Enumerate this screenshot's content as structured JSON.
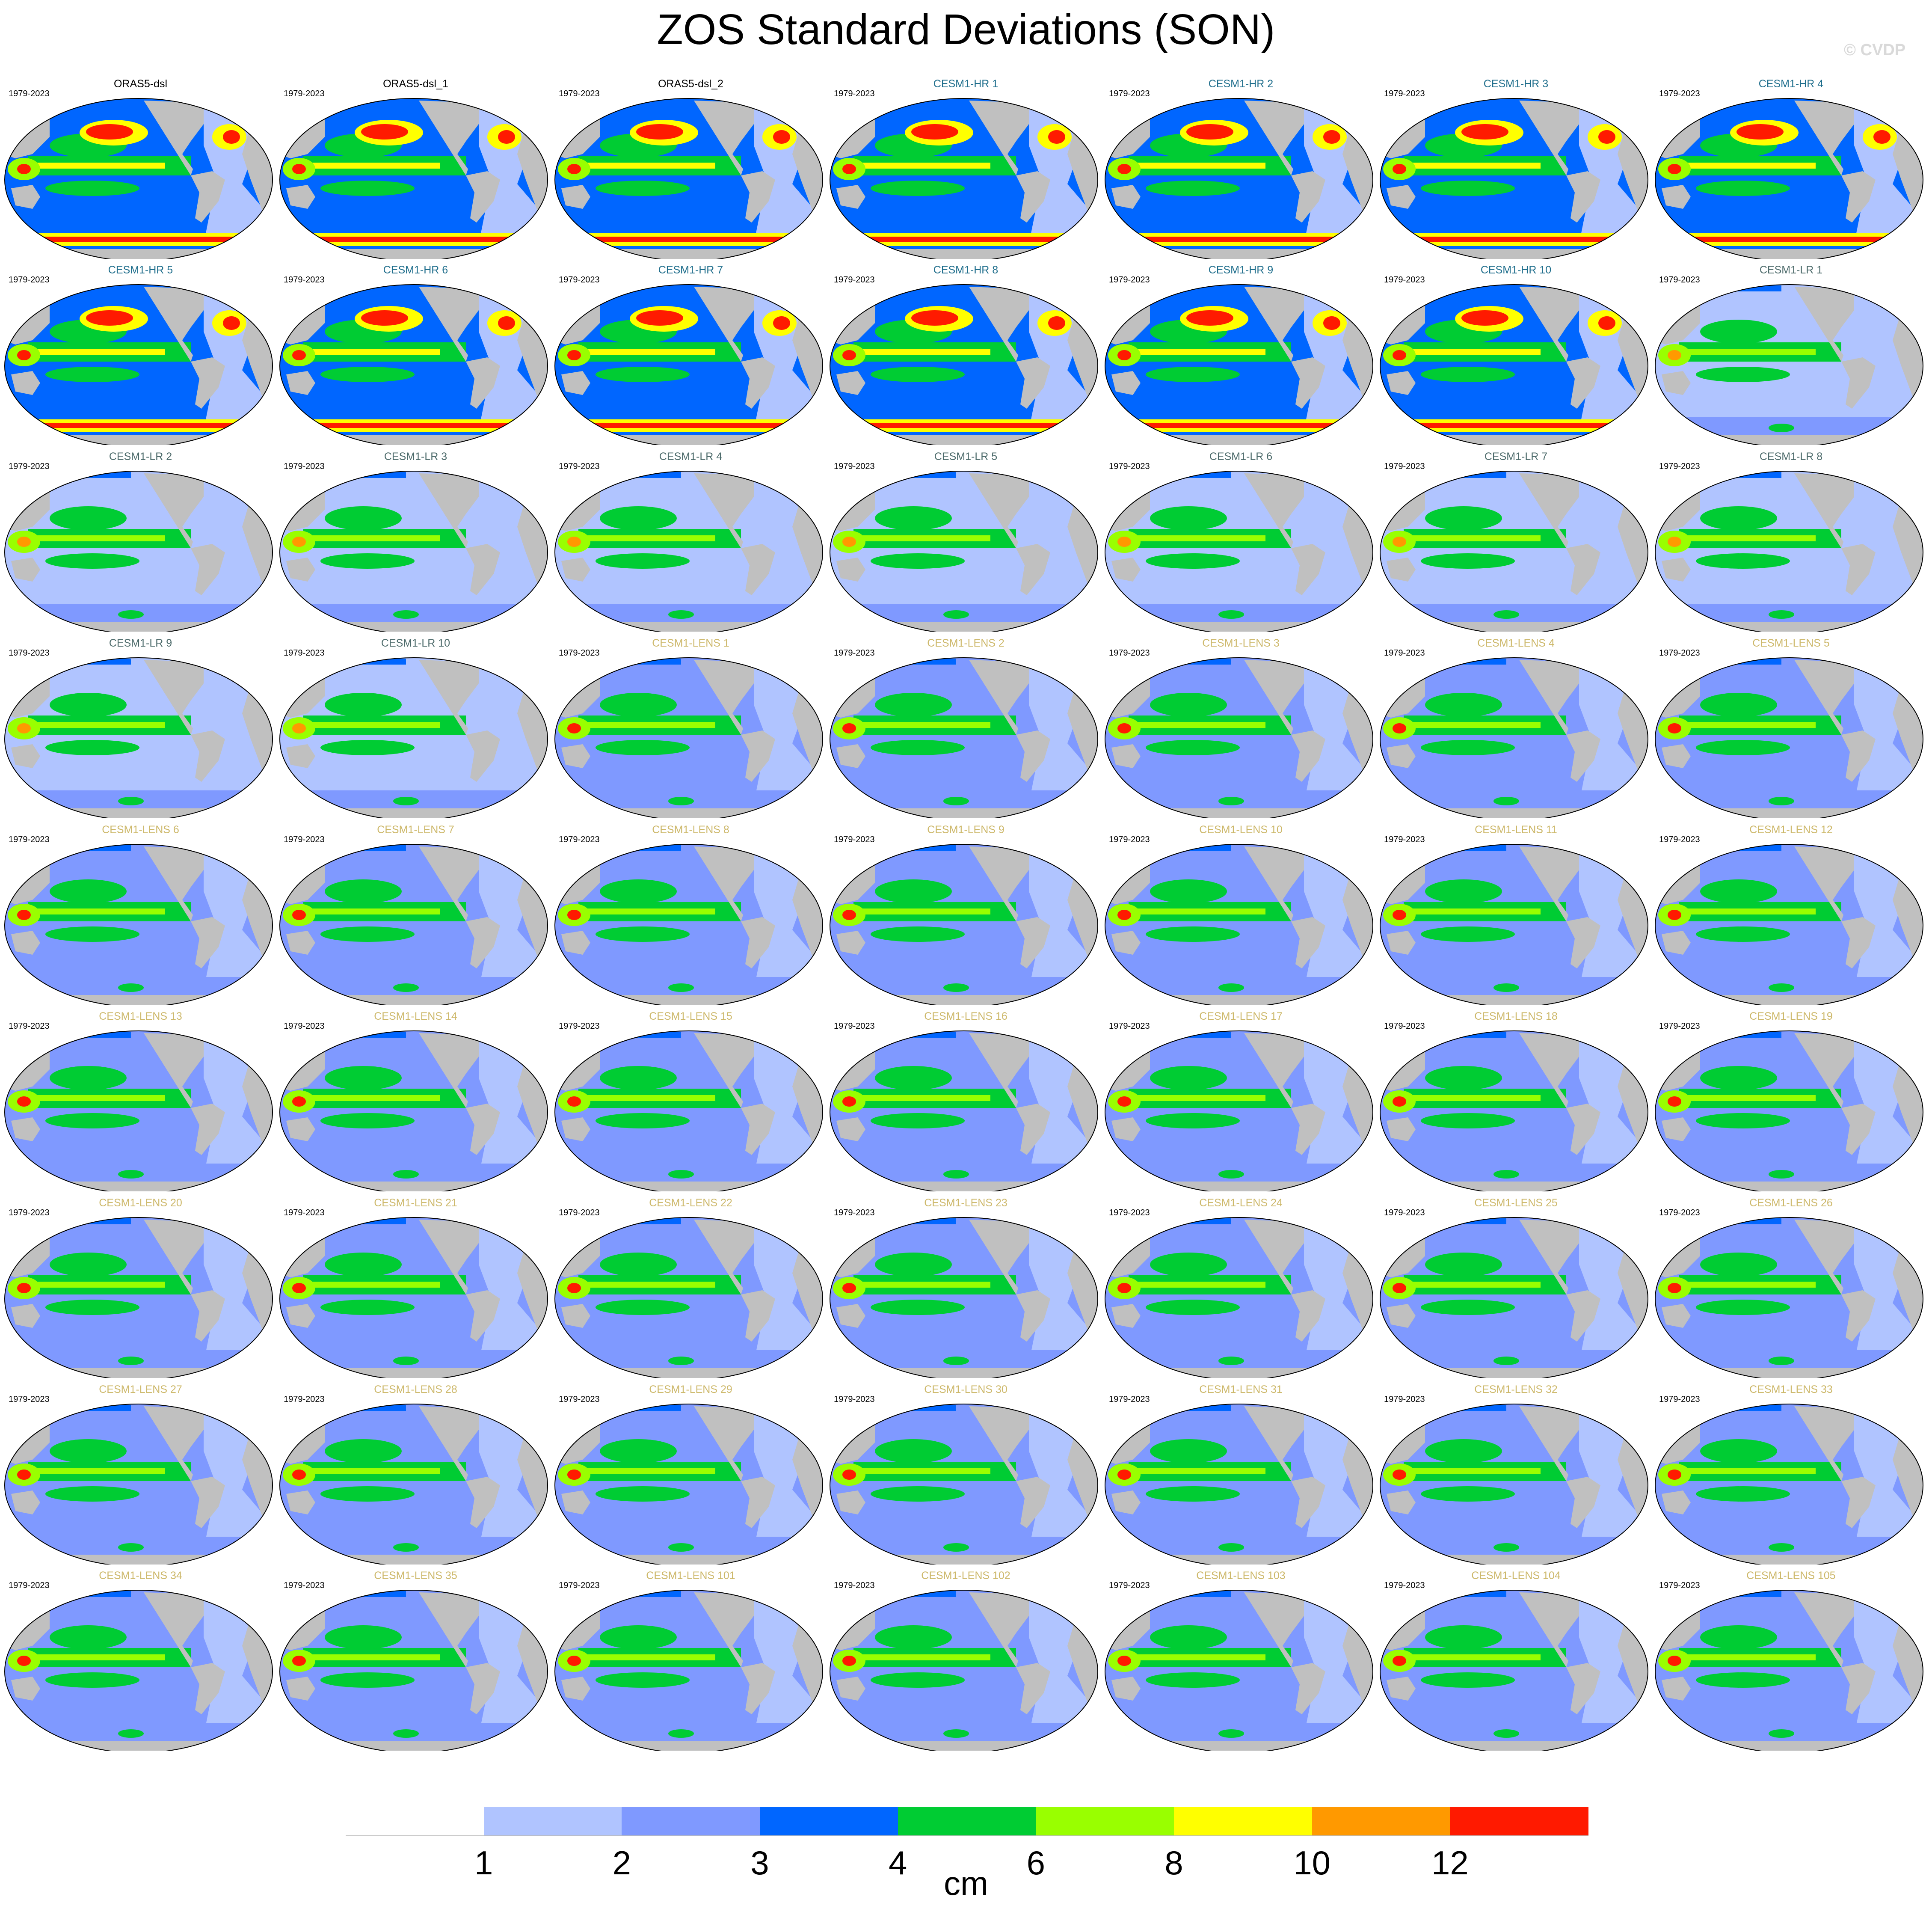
{
  "title": "ZOS Standard Deviations (SON)",
  "copyright": "© CVDP",
  "units": "cm",
  "period": "1979-2023",
  "colorbar": {
    "levels": [
      "1",
      "2",
      "3",
      "4",
      "6",
      "8",
      "10",
      "12"
    ],
    "colors": [
      "#ffffff",
      "#b0c4ff",
      "#7f99ff",
      "#0066ff",
      "#00cc33",
      "#99ff00",
      "#ffff00",
      "#ff9900",
      "#ff1a00"
    ]
  },
  "land_color": "#c0c0c0",
  "panels": [
    {
      "name": "ORAS5-dsl",
      "group": "obs",
      "level": 3
    },
    {
      "name": "ORAS5-dsl_1",
      "group": "obs",
      "level": 3
    },
    {
      "name": "ORAS5-dsl_2",
      "group": "obs",
      "level": 3
    },
    {
      "name": "CESM1-HR 1",
      "group": "hr",
      "level": 4
    },
    {
      "name": "CESM1-HR 2",
      "group": "hr",
      "level": 4
    },
    {
      "name": "CESM1-HR 3",
      "group": "hr",
      "level": 4
    },
    {
      "name": "CESM1-HR 4",
      "group": "hr",
      "level": 4
    },
    {
      "name": "CESM1-HR 5",
      "group": "hr",
      "level": 4
    },
    {
      "name": "CESM1-HR 6",
      "group": "hr",
      "level": 4
    },
    {
      "name": "CESM1-HR 7",
      "group": "hr",
      "level": 4
    },
    {
      "name": "CESM1-HR 8",
      "group": "hr",
      "level": 4
    },
    {
      "name": "CESM1-HR 9",
      "group": "hr",
      "level": 4
    },
    {
      "name": "CESM1-HR 10",
      "group": "hr",
      "level": 4
    },
    {
      "name": "CESM1-LR 1",
      "group": "lr",
      "level": 1
    },
    {
      "name": "CESM1-LR 2",
      "group": "lr",
      "level": 1
    },
    {
      "name": "CESM1-LR 3",
      "group": "lr",
      "level": 1
    },
    {
      "name": "CESM1-LR 4",
      "group": "lr",
      "level": 1
    },
    {
      "name": "CESM1-LR 5",
      "group": "lr",
      "level": 1
    },
    {
      "name": "CESM1-LR 6",
      "group": "lr",
      "level": 1
    },
    {
      "name": "CESM1-LR 7",
      "group": "lr",
      "level": 1
    },
    {
      "name": "CESM1-LR 8",
      "group": "lr",
      "level": 1
    },
    {
      "name": "CESM1-LR 9",
      "group": "lr",
      "level": 1
    },
    {
      "name": "CESM1-LR 10",
      "group": "lr",
      "level": 1
    },
    {
      "name": "CESM1-LENS 1",
      "group": "lens",
      "level": 2
    },
    {
      "name": "CESM1-LENS 2",
      "group": "lens",
      "level": 2
    },
    {
      "name": "CESM1-LENS 3",
      "group": "lens",
      "level": 2
    },
    {
      "name": "CESM1-LENS 4",
      "group": "lens",
      "level": 2
    },
    {
      "name": "CESM1-LENS 5",
      "group": "lens",
      "level": 2
    },
    {
      "name": "CESM1-LENS 6",
      "group": "lens",
      "level": 2
    },
    {
      "name": "CESM1-LENS 7",
      "group": "lens",
      "level": 2
    },
    {
      "name": "CESM1-LENS 8",
      "group": "lens",
      "level": 2
    },
    {
      "name": "CESM1-LENS 9",
      "group": "lens",
      "level": 2
    },
    {
      "name": "CESM1-LENS 10",
      "group": "lens",
      "level": 2
    },
    {
      "name": "CESM1-LENS 11",
      "group": "lens",
      "level": 2
    },
    {
      "name": "CESM1-LENS 12",
      "group": "lens",
      "level": 2
    },
    {
      "name": "CESM1-LENS 13",
      "group": "lens",
      "level": 2
    },
    {
      "name": "CESM1-LENS 14",
      "group": "lens",
      "level": 2
    },
    {
      "name": "CESM1-LENS 15",
      "group": "lens",
      "level": 2
    },
    {
      "name": "CESM1-LENS 16",
      "group": "lens",
      "level": 2
    },
    {
      "name": "CESM1-LENS 17",
      "group": "lens",
      "level": 2
    },
    {
      "name": "CESM1-LENS 18",
      "group": "lens",
      "level": 2
    },
    {
      "name": "CESM1-LENS 19",
      "group": "lens",
      "level": 2
    },
    {
      "name": "CESM1-LENS 20",
      "group": "lens",
      "level": 2
    },
    {
      "name": "CESM1-LENS 21",
      "group": "lens",
      "level": 2
    },
    {
      "name": "CESM1-LENS 22",
      "group": "lens",
      "level": 2
    },
    {
      "name": "CESM1-LENS 23",
      "group": "lens",
      "level": 2
    },
    {
      "name": "CESM1-LENS 24",
      "group": "lens",
      "level": 2
    },
    {
      "name": "CESM1-LENS 25",
      "group": "lens",
      "level": 2
    },
    {
      "name": "CESM1-LENS 26",
      "group": "lens",
      "level": 2
    },
    {
      "name": "CESM1-LENS 27",
      "group": "lens",
      "level": 2
    },
    {
      "name": "CESM1-LENS 28",
      "group": "lens",
      "level": 2
    },
    {
      "name": "CESM1-LENS 29",
      "group": "lens",
      "level": 2
    },
    {
      "name": "CESM1-LENS 30",
      "group": "lens",
      "level": 2
    },
    {
      "name": "CESM1-LENS 31",
      "group": "lens",
      "level": 2
    },
    {
      "name": "CESM1-LENS 32",
      "group": "lens",
      "level": 2
    },
    {
      "name": "CESM1-LENS 33",
      "group": "lens",
      "level": 2
    },
    {
      "name": "CESM1-LENS 34",
      "group": "lens",
      "level": 2
    },
    {
      "name": "CESM1-LENS 35",
      "group": "lens",
      "level": 2
    },
    {
      "name": "CESM1-LENS 101",
      "group": "lens",
      "level": 2
    },
    {
      "name": "CESM1-LENS 102",
      "group": "lens",
      "level": 2
    },
    {
      "name": "CESM1-LENS 103",
      "group": "lens",
      "level": 2
    },
    {
      "name": "CESM1-LENS 104",
      "group": "lens",
      "level": 2
    },
    {
      "name": "CESM1-LENS 105",
      "group": "lens",
      "level": 2
    }
  ],
  "group_label_colors": {
    "obs": "#000000",
    "hr": "#1f6e8c",
    "lr": "#4d6b6b",
    "lens": "#cdb86a"
  }
}
